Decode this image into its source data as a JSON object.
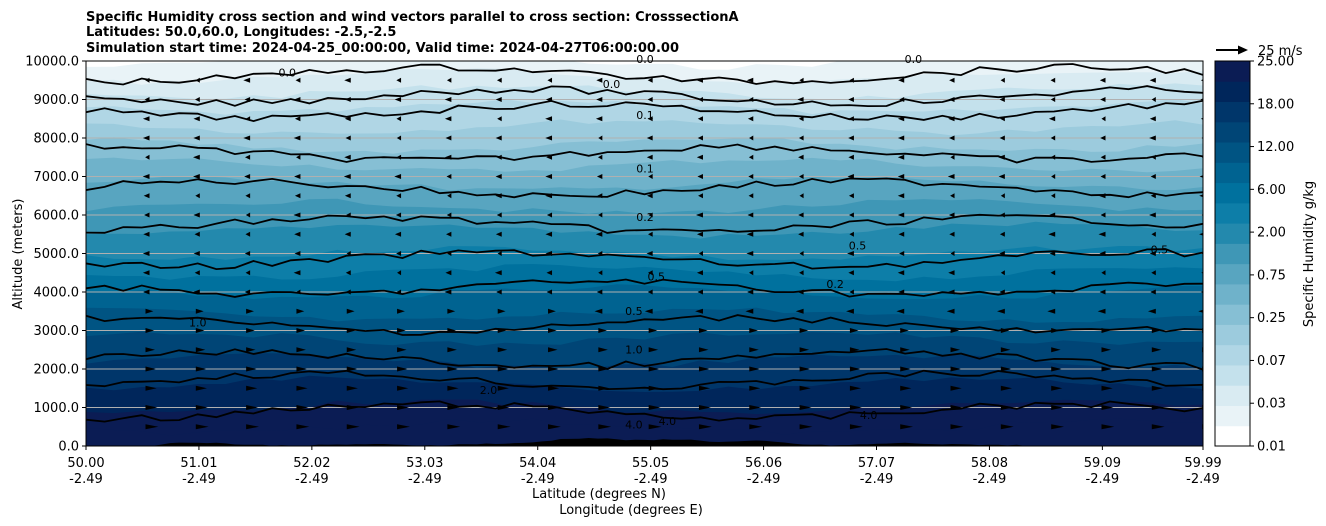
{
  "chart_data": {
    "type": "contour",
    "title": [
      "Specific Humidity cross section and wind vectors parallel to cross section: CrosssectionA",
      "Latitudes: 50.0,60.0, Longitudes: -2.5,-2.5",
      "Simulation start time: 2024-04-25_00:00:00, Valid time: 2024-04-27T06:00:00.00"
    ],
    "ylabel": "Altitude (meters)",
    "xlabel_lat": "Latitude (degrees N)",
    "xlabel_lon": "Longitude (degrees E)",
    "ylim": [
      0,
      10000
    ],
    "yticks": [
      "0.0",
      "1000.0",
      "2000.0",
      "3000.0",
      "4000.0",
      "5000.0",
      "6000.0",
      "7000.0",
      "8000.0",
      "9000.0",
      "10000.0"
    ],
    "xticks": [
      {
        "lat": "50.00",
        "lon": "-2.49"
      },
      {
        "lat": "51.01",
        "lon": "-2.49"
      },
      {
        "lat": "52.02",
        "lon": "-2.49"
      },
      {
        "lat": "53.03",
        "lon": "-2.49"
      },
      {
        "lat": "54.04",
        "lon": "-2.49"
      },
      {
        "lat": "55.05",
        "lon": "-2.49"
      },
      {
        "lat": "56.06",
        "lon": "-2.49"
      },
      {
        "lat": "57.07",
        "lon": "-2.49"
      },
      {
        "lat": "58.08",
        "lon": "-2.49"
      },
      {
        "lat": "59.09",
        "lon": "-2.49"
      },
      {
        "lat": "59.99",
        "lon": "-2.49"
      }
    ],
    "colorbar": {
      "label": "Specific Humidity g/kg",
      "ticks": [
        "0.01",
        "0.03",
        "0.07",
        "0.25",
        "0.75",
        "2.00",
        "6.00",
        "12.00",
        "18.00",
        "25.00"
      ],
      "colors": [
        "#ffffff",
        "#e9f3f7",
        "#d9ebf2",
        "#c4e1ec",
        "#b0d6e5",
        "#9ccbdd",
        "#86bfd4",
        "#6fb2ca",
        "#58a5c0",
        "#3f97b6",
        "#2389ad",
        "#0d7ea8",
        "#00719e",
        "#006391",
        "#005483",
        "#004576",
        "#00366a",
        "#00265b",
        "#0b1c54"
      ]
    },
    "quiver_key": "25 m/s",
    "grid": "horizontal",
    "contour_lines": [
      {
        "level": 0.0,
        "y": 9650
      },
      {
        "level": 0.0,
        "y": 9080
      },
      {
        "level": 0.1,
        "y": 8700
      },
      {
        "level": 0.1,
        "y": 7600
      },
      {
        "level": 0.2,
        "y": 6700
      },
      {
        "level": 0.2,
        "y": 5750
      },
      {
        "level": 0.5,
        "y": 4850
      },
      {
        "level": 0.5,
        "y": 4100
      },
      {
        "level": 1.0,
        "y": 3150
      },
      {
        "level": 1.0,
        "y": 2250
      },
      {
        "level": 2.0,
        "y": 1700
      },
      {
        "level": 4.0,
        "y": 900
      }
    ],
    "contour_labels": [
      {
        "text": "0.0",
        "x": 51.8,
        "y": 9600
      },
      {
        "text": "0.0",
        "x": 54.7,
        "y": 9300
      },
      {
        "text": "0.0",
        "x": 55.0,
        "y": 9950
      },
      {
        "text": "0.0",
        "x": 57.4,
        "y": 9950
      },
      {
        "text": "0.1",
        "x": 55.0,
        "y": 8500
      },
      {
        "text": "0.1",
        "x": 55.0,
        "y": 7100
      },
      {
        "text": "0.2",
        "x": 55.0,
        "y": 5850
      },
      {
        "text": "0.2",
        "x": 56.7,
        "y": 4100
      },
      {
        "text": "0.5",
        "x": 55.1,
        "y": 4300
      },
      {
        "text": "0.5",
        "x": 54.9,
        "y": 3400
      },
      {
        "text": "0.5",
        "x": 56.9,
        "y": 5100
      },
      {
        "text": "0.5",
        "x": 59.6,
        "y": 5000
      },
      {
        "text": "1.0",
        "x": 51.0,
        "y": 3100
      },
      {
        "text": "1.0",
        "x": 54.9,
        "y": 2400
      },
      {
        "text": "2.0",
        "x": 53.6,
        "y": 1350
      },
      {
        "text": "4.0",
        "x": 57.0,
        "y": 700
      },
      {
        "text": "4.0",
        "x": 54.9,
        "y": 450
      },
      {
        "text": "4.0",
        "x": 55.2,
        "y": 550
      }
    ],
    "filled_bands_y": [
      10000,
      9600,
      9200,
      8800,
      8300,
      7800,
      7300,
      6800,
      6200,
      5600,
      5000,
      4500,
      4000,
      3400,
      2800,
      2200,
      1600,
      1000,
      500
    ]
  }
}
